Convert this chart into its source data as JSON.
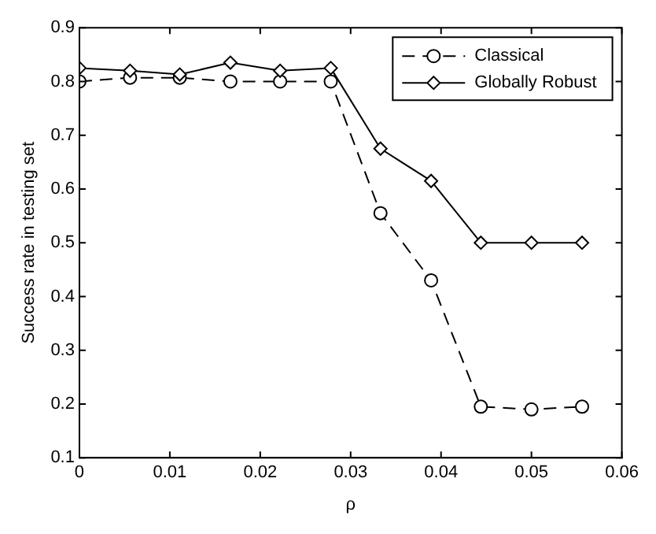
{
  "chart_data": {
    "type": "line",
    "xlabel": "ρ",
    "ylabel": "Success rate in testing set",
    "x": [
      0,
      0.0056,
      0.0111,
      0.0167,
      0.0222,
      0.0278,
      0.0333,
      0.0389,
      0.0444,
      0.05,
      0.0556
    ],
    "series": [
      {
        "name": "Classical",
        "color": "#000000",
        "marker": "circle",
        "line_style": "dashed",
        "values": [
          0.8,
          0.807,
          0.807,
          0.8,
          0.8,
          0.8,
          0.555,
          0.43,
          0.195,
          0.19,
          0.195
        ]
      },
      {
        "name": "Globally Robust",
        "color": "#000000",
        "marker": "diamond",
        "line_style": "solid",
        "values": [
          0.825,
          0.82,
          0.813,
          0.835,
          0.82,
          0.825,
          0.675,
          0.615,
          0.5,
          0.5,
          0.5
        ]
      }
    ],
    "xlim": [
      0,
      0.06
    ],
    "xticks": [
      0,
      0.01,
      0.02,
      0.03,
      0.04,
      0.05,
      0.06
    ],
    "ylim": [
      0.1,
      0.9
    ],
    "yticks": [
      0.1,
      0.2,
      0.3,
      0.4,
      0.5,
      0.6,
      0.7,
      0.8,
      0.9
    ],
    "grid": false,
    "legend": "top right"
  }
}
